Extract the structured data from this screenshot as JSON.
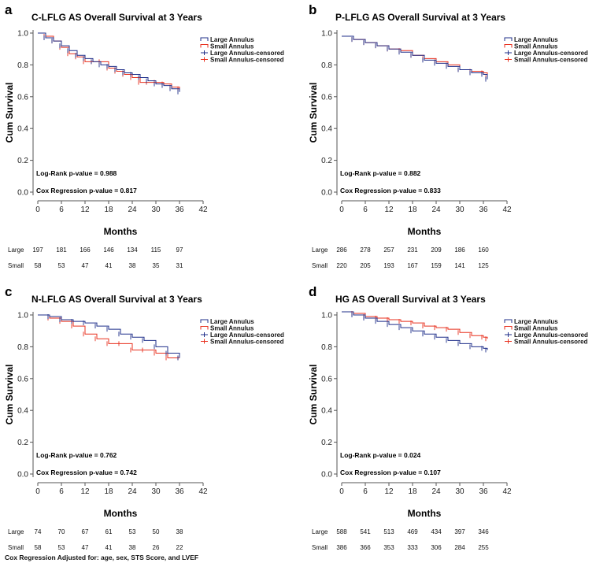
{
  "colors": {
    "large": "#1f2f8a",
    "small": "#e8311f",
    "axis": "#555555"
  },
  "legend": [
    "Large Annulus",
    "Small Annulus",
    "Large Annulus-censored",
    "Small Annulus-censored"
  ],
  "risk_labels": [
    "Large",
    "Small"
  ],
  "months": [
    0,
    6,
    12,
    18,
    24,
    30,
    36
  ],
  "footnote": "Cox Regression Adjusted for: age, sex, STS Score, and LVEF",
  "chart_data": [
    {
      "panel": "a",
      "type": "line",
      "title": "C-LFLG AS Overall Survival at 3 Years",
      "xlabel": "Months",
      "ylabel": "Cum Survival",
      "xlim": [
        0,
        42
      ],
      "ylim": [
        0,
        1
      ],
      "xticks": [
        0,
        6,
        12,
        18,
        24,
        30,
        36,
        42
      ],
      "yticks": [
        "0.0",
        "0.2",
        "0.4",
        "0.6",
        "0.8",
        "1.0"
      ],
      "logrank": "Log-Rank p-value = 0.988",
      "cox": "Cox Regression p-value = 0.817",
      "series": [
        {
          "name": "Large Annulus",
          "x": [
            0,
            2,
            4,
            6,
            8,
            10,
            12,
            14,
            16,
            18,
            20,
            22,
            24,
            26,
            28,
            30,
            32,
            34,
            36
          ],
          "y": [
            1.0,
            0.97,
            0.95,
            0.92,
            0.89,
            0.86,
            0.84,
            0.82,
            0.8,
            0.79,
            0.77,
            0.75,
            0.74,
            0.72,
            0.7,
            0.68,
            0.67,
            0.65,
            0.63
          ]
        },
        {
          "name": "Small Annulus",
          "x": [
            0,
            2,
            4,
            6,
            8,
            10,
            12,
            14,
            16,
            18,
            20,
            22,
            24,
            26,
            28,
            30,
            32,
            34,
            36
          ],
          "y": [
            1.0,
            0.98,
            0.95,
            0.91,
            0.87,
            0.85,
            0.82,
            0.82,
            0.82,
            0.78,
            0.76,
            0.74,
            0.72,
            0.69,
            0.69,
            0.69,
            0.68,
            0.66,
            0.65
          ]
        }
      ],
      "risk_table": {
        "Large": [
          197,
          181,
          166,
          146,
          134,
          115,
          97
        ],
        "Small": [
          58,
          53,
          47,
          41,
          38,
          35,
          31
        ]
      }
    },
    {
      "panel": "b",
      "type": "line",
      "title": "P-LFLG AS Overall Survival at 3 Years",
      "xlabel": "Months",
      "ylabel": "Cum Survival",
      "xlim": [
        0,
        42
      ],
      "ylim": [
        0,
        1
      ],
      "xticks": [
        0,
        6,
        12,
        18,
        24,
        30,
        36,
        42
      ],
      "yticks": [
        "0.0",
        "0.2",
        "0.4",
        "0.6",
        "0.8",
        "1.0"
      ],
      "logrank": "Log-Rank p-value = 0.882",
      "cox": "Cox Regression p-value = 0.833",
      "series": [
        {
          "name": "Large Annulus",
          "x": [
            0,
            3,
            6,
            9,
            12,
            15,
            18,
            21,
            24,
            27,
            30,
            33,
            36,
            37
          ],
          "y": [
            0.98,
            0.96,
            0.94,
            0.92,
            0.9,
            0.88,
            0.86,
            0.83,
            0.81,
            0.79,
            0.77,
            0.75,
            0.74,
            0.71
          ]
        },
        {
          "name": "Small Annulus",
          "x": [
            0,
            3,
            6,
            9,
            12,
            15,
            18,
            21,
            24,
            27,
            30,
            33,
            36,
            37
          ],
          "y": [
            0.98,
            0.96,
            0.94,
            0.92,
            0.9,
            0.89,
            0.86,
            0.84,
            0.82,
            0.8,
            0.77,
            0.76,
            0.75,
            0.72
          ]
        }
      ],
      "risk_table": {
        "Large": [
          286,
          278,
          257,
          231,
          209,
          186,
          160
        ],
        "Small": [
          220,
          205,
          193,
          167,
          159,
          141,
          125
        ]
      }
    },
    {
      "panel": "c",
      "type": "line",
      "title": "N-LFLG AS Overall Survival at 3 Years",
      "xlabel": "Months",
      "ylabel": "Cum Survival",
      "xlim": [
        0,
        42
      ],
      "ylim": [
        0,
        1
      ],
      "xticks": [
        0,
        6,
        12,
        18,
        24,
        30,
        36,
        42
      ],
      "yticks": [
        "0.0",
        "0.2",
        "0.4",
        "0.6",
        "0.8",
        "1.0"
      ],
      "logrank": "Log-Rank p-value = 0.762",
      "cox": "Cox Regression p-value = 0.742",
      "series": [
        {
          "name": "Large Annulus",
          "x": [
            0,
            3,
            6,
            9,
            12,
            15,
            18,
            21,
            24,
            27,
            30,
            33,
            36
          ],
          "y": [
            1.0,
            0.99,
            0.97,
            0.96,
            0.95,
            0.93,
            0.91,
            0.88,
            0.86,
            0.84,
            0.8,
            0.76,
            0.73
          ]
        },
        {
          "name": "Small Annulus",
          "x": [
            0,
            3,
            6,
            9,
            12,
            15,
            18,
            21,
            24,
            27,
            30,
            33,
            36
          ],
          "y": [
            1.0,
            0.98,
            0.96,
            0.93,
            0.88,
            0.85,
            0.82,
            0.82,
            0.78,
            0.78,
            0.76,
            0.73,
            0.73
          ]
        }
      ],
      "risk_table": {
        "Large": [
          74,
          70,
          67,
          61,
          53,
          50,
          38
        ],
        "Small": [
          58,
          53,
          47,
          41,
          38,
          26,
          22
        ]
      }
    },
    {
      "panel": "d",
      "type": "line",
      "title": "HG AS Overall Survival at 3 Years",
      "xlabel": "Months",
      "ylabel": "Cum Survival",
      "xlim": [
        0,
        42
      ],
      "ylim": [
        0,
        1
      ],
      "xticks": [
        0,
        6,
        12,
        18,
        24,
        30,
        36,
        42
      ],
      "yticks": [
        "0.0",
        "0.2",
        "0.4",
        "0.6",
        "0.8",
        "1.0"
      ],
      "logrank": "Log-Rank p-value = 0.024",
      "cox": "Cox Regression p-value = 0.107",
      "series": [
        {
          "name": "Large Annulus",
          "x": [
            0,
            3,
            6,
            9,
            12,
            15,
            18,
            21,
            24,
            27,
            30,
            33,
            36,
            37
          ],
          "y": [
            1.02,
            1.0,
            0.98,
            0.96,
            0.94,
            0.92,
            0.9,
            0.88,
            0.86,
            0.84,
            0.82,
            0.8,
            0.79,
            0.78
          ]
        },
        {
          "name": "Small Annulus",
          "x": [
            0,
            3,
            6,
            9,
            12,
            15,
            18,
            21,
            24,
            27,
            30,
            33,
            36,
            37
          ],
          "y": [
            1.02,
            1.01,
            0.99,
            0.98,
            0.97,
            0.96,
            0.95,
            0.93,
            0.92,
            0.91,
            0.89,
            0.87,
            0.86,
            0.85
          ]
        }
      ],
      "risk_table": {
        "Large": [
          588,
          541,
          513,
          469,
          434,
          397,
          346
        ],
        "Small": [
          386,
          366,
          353,
          333,
          306,
          284,
          255
        ]
      }
    }
  ]
}
